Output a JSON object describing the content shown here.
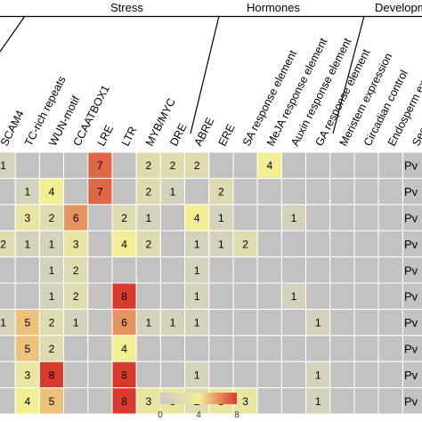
{
  "chart_data": {
    "type": "heatmap",
    "groups": [
      {
        "label": "Stress"
      },
      {
        "label": "Hormones"
      },
      {
        "label": "Developm"
      }
    ],
    "columns": [
      "SCAM4",
      "TC-rich repeats",
      "WUN-motif",
      "CCAATBOX1",
      "LRE",
      "LTR",
      "MYB/MYC",
      "DRE",
      "ABRE",
      "ERE",
      "SA response element",
      "MeJA response element",
      "Auxin response element",
      "GA response element",
      "Meristem expression",
      "Circadian control",
      "Endosperm expression",
      "Seeds specific regu"
    ],
    "rows": [
      "Pv",
      "Pv",
      "Pv",
      "Pv",
      "Pv",
      "Pv",
      "Pv",
      "Pv",
      "Pv",
      "Pv"
    ],
    "values": [
      [
        1,
        null,
        null,
        null,
        7,
        null,
        2,
        2,
        2,
        null,
        null,
        4,
        null,
        null,
        null,
        null,
        null,
        null
      ],
      [
        null,
        1,
        4,
        null,
        7,
        null,
        2,
        1,
        null,
        2,
        null,
        null,
        null,
        null,
        null,
        null,
        null,
        null
      ],
      [
        null,
        3,
        2,
        6,
        null,
        2,
        1,
        null,
        4,
        1,
        null,
        null,
        1,
        null,
        null,
        null,
        null,
        null
      ],
      [
        2,
        1,
        1,
        3,
        null,
        4,
        2,
        null,
        1,
        1,
        2,
        null,
        null,
        null,
        null,
        null,
        null,
        null
      ],
      [
        null,
        null,
        1,
        2,
        null,
        null,
        null,
        null,
        1,
        null,
        null,
        null,
        null,
        null,
        null,
        null,
        null,
        null
      ],
      [
        null,
        null,
        1,
        2,
        null,
        8,
        null,
        null,
        1,
        null,
        null,
        null,
        1,
        null,
        null,
        null,
        null,
        null
      ],
      [
        1,
        5,
        2,
        1,
        null,
        6,
        1,
        1,
        1,
        null,
        null,
        null,
        null,
        1,
        null,
        null,
        null,
        null
      ],
      [
        null,
        5,
        2,
        null,
        null,
        4,
        null,
        null,
        null,
        null,
        null,
        null,
        null,
        null,
        null,
        null,
        null,
        null
      ],
      [
        null,
        3,
        8,
        null,
        null,
        8,
        null,
        null,
        1,
        null,
        null,
        null,
        null,
        1,
        null,
        null,
        null,
        null
      ],
      [
        null,
        4,
        5,
        null,
        null,
        8,
        3,
        3,
        2,
        3,
        3,
        null,
        null,
        1,
        null,
        null,
        null,
        null
      ]
    ],
    "colorscale": {
      "min": 0,
      "mid": 4,
      "max": 8,
      "colors": [
        "#c8c8c8",
        "#f3ee93",
        "#d93a2b"
      ],
      "missing": "#c2c2c2",
      "grid": "#ffffff"
    },
    "legend_ticks": [
      "0",
      "4",
      "8"
    ]
  }
}
